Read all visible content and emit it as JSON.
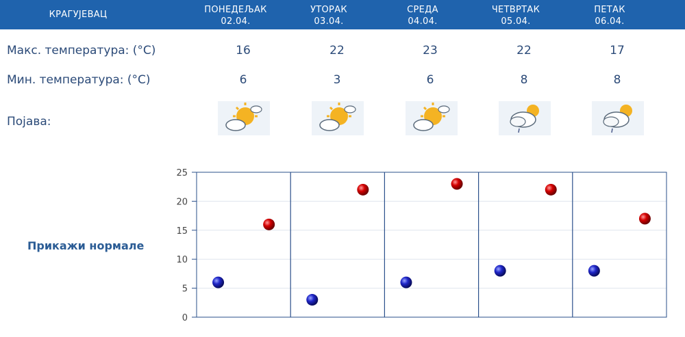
{
  "header": {
    "city": "КРАГУЈЕВАЦ",
    "days": [
      {
        "name": "ПОНЕДЕЉАК",
        "date": "02.04."
      },
      {
        "name": "УТОРАК",
        "date": "03.04."
      },
      {
        "name": "СРЕДА",
        "date": "04.04."
      },
      {
        "name": "ЧЕТВРТАК",
        "date": "05.04."
      },
      {
        "name": "ПЕТАК",
        "date": "06.04."
      }
    ]
  },
  "rows": {
    "max_label": "Макс. температура: (°C)",
    "min_label": "Мин. температура: (°C)",
    "phenomenon_label": "Појава:",
    "max_values": [
      "16",
      "22",
      "23",
      "22",
      "17"
    ],
    "min_values": [
      "6",
      "3",
      "6",
      "8",
      "8"
    ],
    "icons": [
      "partly-sunny-icon",
      "partly-sunny-icon",
      "partly-sunny-icon",
      "cloudy-rain-icon",
      "cloudy-rain-icon"
    ]
  },
  "normals_link": "Прикажи нормале",
  "colors": {
    "header_bg": "#1f63ad",
    "text": "#2b4a78",
    "max_marker": "#cc0000",
    "min_marker": "#1c22b8",
    "grid": "#2a4f8a"
  },
  "chart_data": {
    "type": "scatter",
    "categories": [
      "02.04.",
      "03.04.",
      "04.04.",
      "05.04.",
      "06.04."
    ],
    "series": [
      {
        "values": [
          6,
          3,
          6,
          8,
          8
        ],
        "color": "#1c22b8"
      },
      {
        "values": [
          16,
          22,
          23,
          22,
          17
        ],
        "color": "#cc0000"
      }
    ],
    "ylim": [
      0,
      25
    ],
    "yticks": [
      "0",
      "5",
      "10",
      "15",
      "20",
      "25"
    ],
    "grid": true
  }
}
